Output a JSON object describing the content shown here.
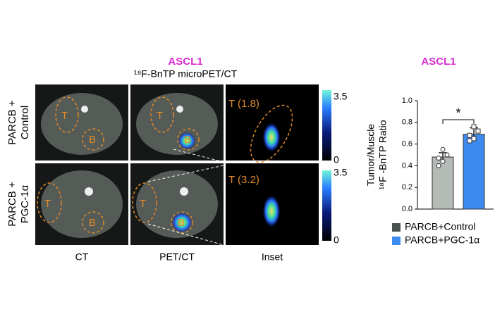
{
  "panel": {
    "title": "ASCL1",
    "subtitle": "¹⁸F-BnTP microPET/CT",
    "rows": [
      [
        "PARCB +",
        "Control"
      ],
      [
        "PARCB +",
        "PGC-1α"
      ]
    ],
    "columns": [
      "CT",
      "PET/CT",
      "Inset"
    ],
    "tumor_label": "T",
    "background_label": "B",
    "insets": [
      "T (1.8)",
      "T (3.2)"
    ],
    "colorbar_ticks": [
      "3.5",
      "0"
    ]
  },
  "chart_data": {
    "type": "bar",
    "title": "ASCL1",
    "ylabel": [
      "Tumor/Muscle",
      "¹⁸F -BnTP Ratio"
    ],
    "ylim": [
      0,
      1.0
    ],
    "yticks": [
      {
        "value": 0,
        "label": "0.0"
      },
      0.2,
      0.4,
      0.6,
      0.8,
      {
        "value": 1.0,
        "label": "1.0"
      }
    ],
    "annotation": "*",
    "series": [
      {
        "name": "PARCB+Control",
        "color": "#b4bab6",
        "legend_color": "#4b5150",
        "values": [
          0.48
        ],
        "errors": [
          0.04
        ],
        "points": [
          0.55,
          0.5,
          0.47,
          0.44,
          0.4
        ]
      },
      {
        "name": "PARCB+PGC-1α",
        "color": "#3d8bef",
        "legend_color": "#3d8bef",
        "values": [
          0.69
        ],
        "errors": [
          0.06
        ],
        "points": [
          0.76,
          0.72,
          0.68,
          0.65,
          0.63
        ]
      }
    ]
  }
}
